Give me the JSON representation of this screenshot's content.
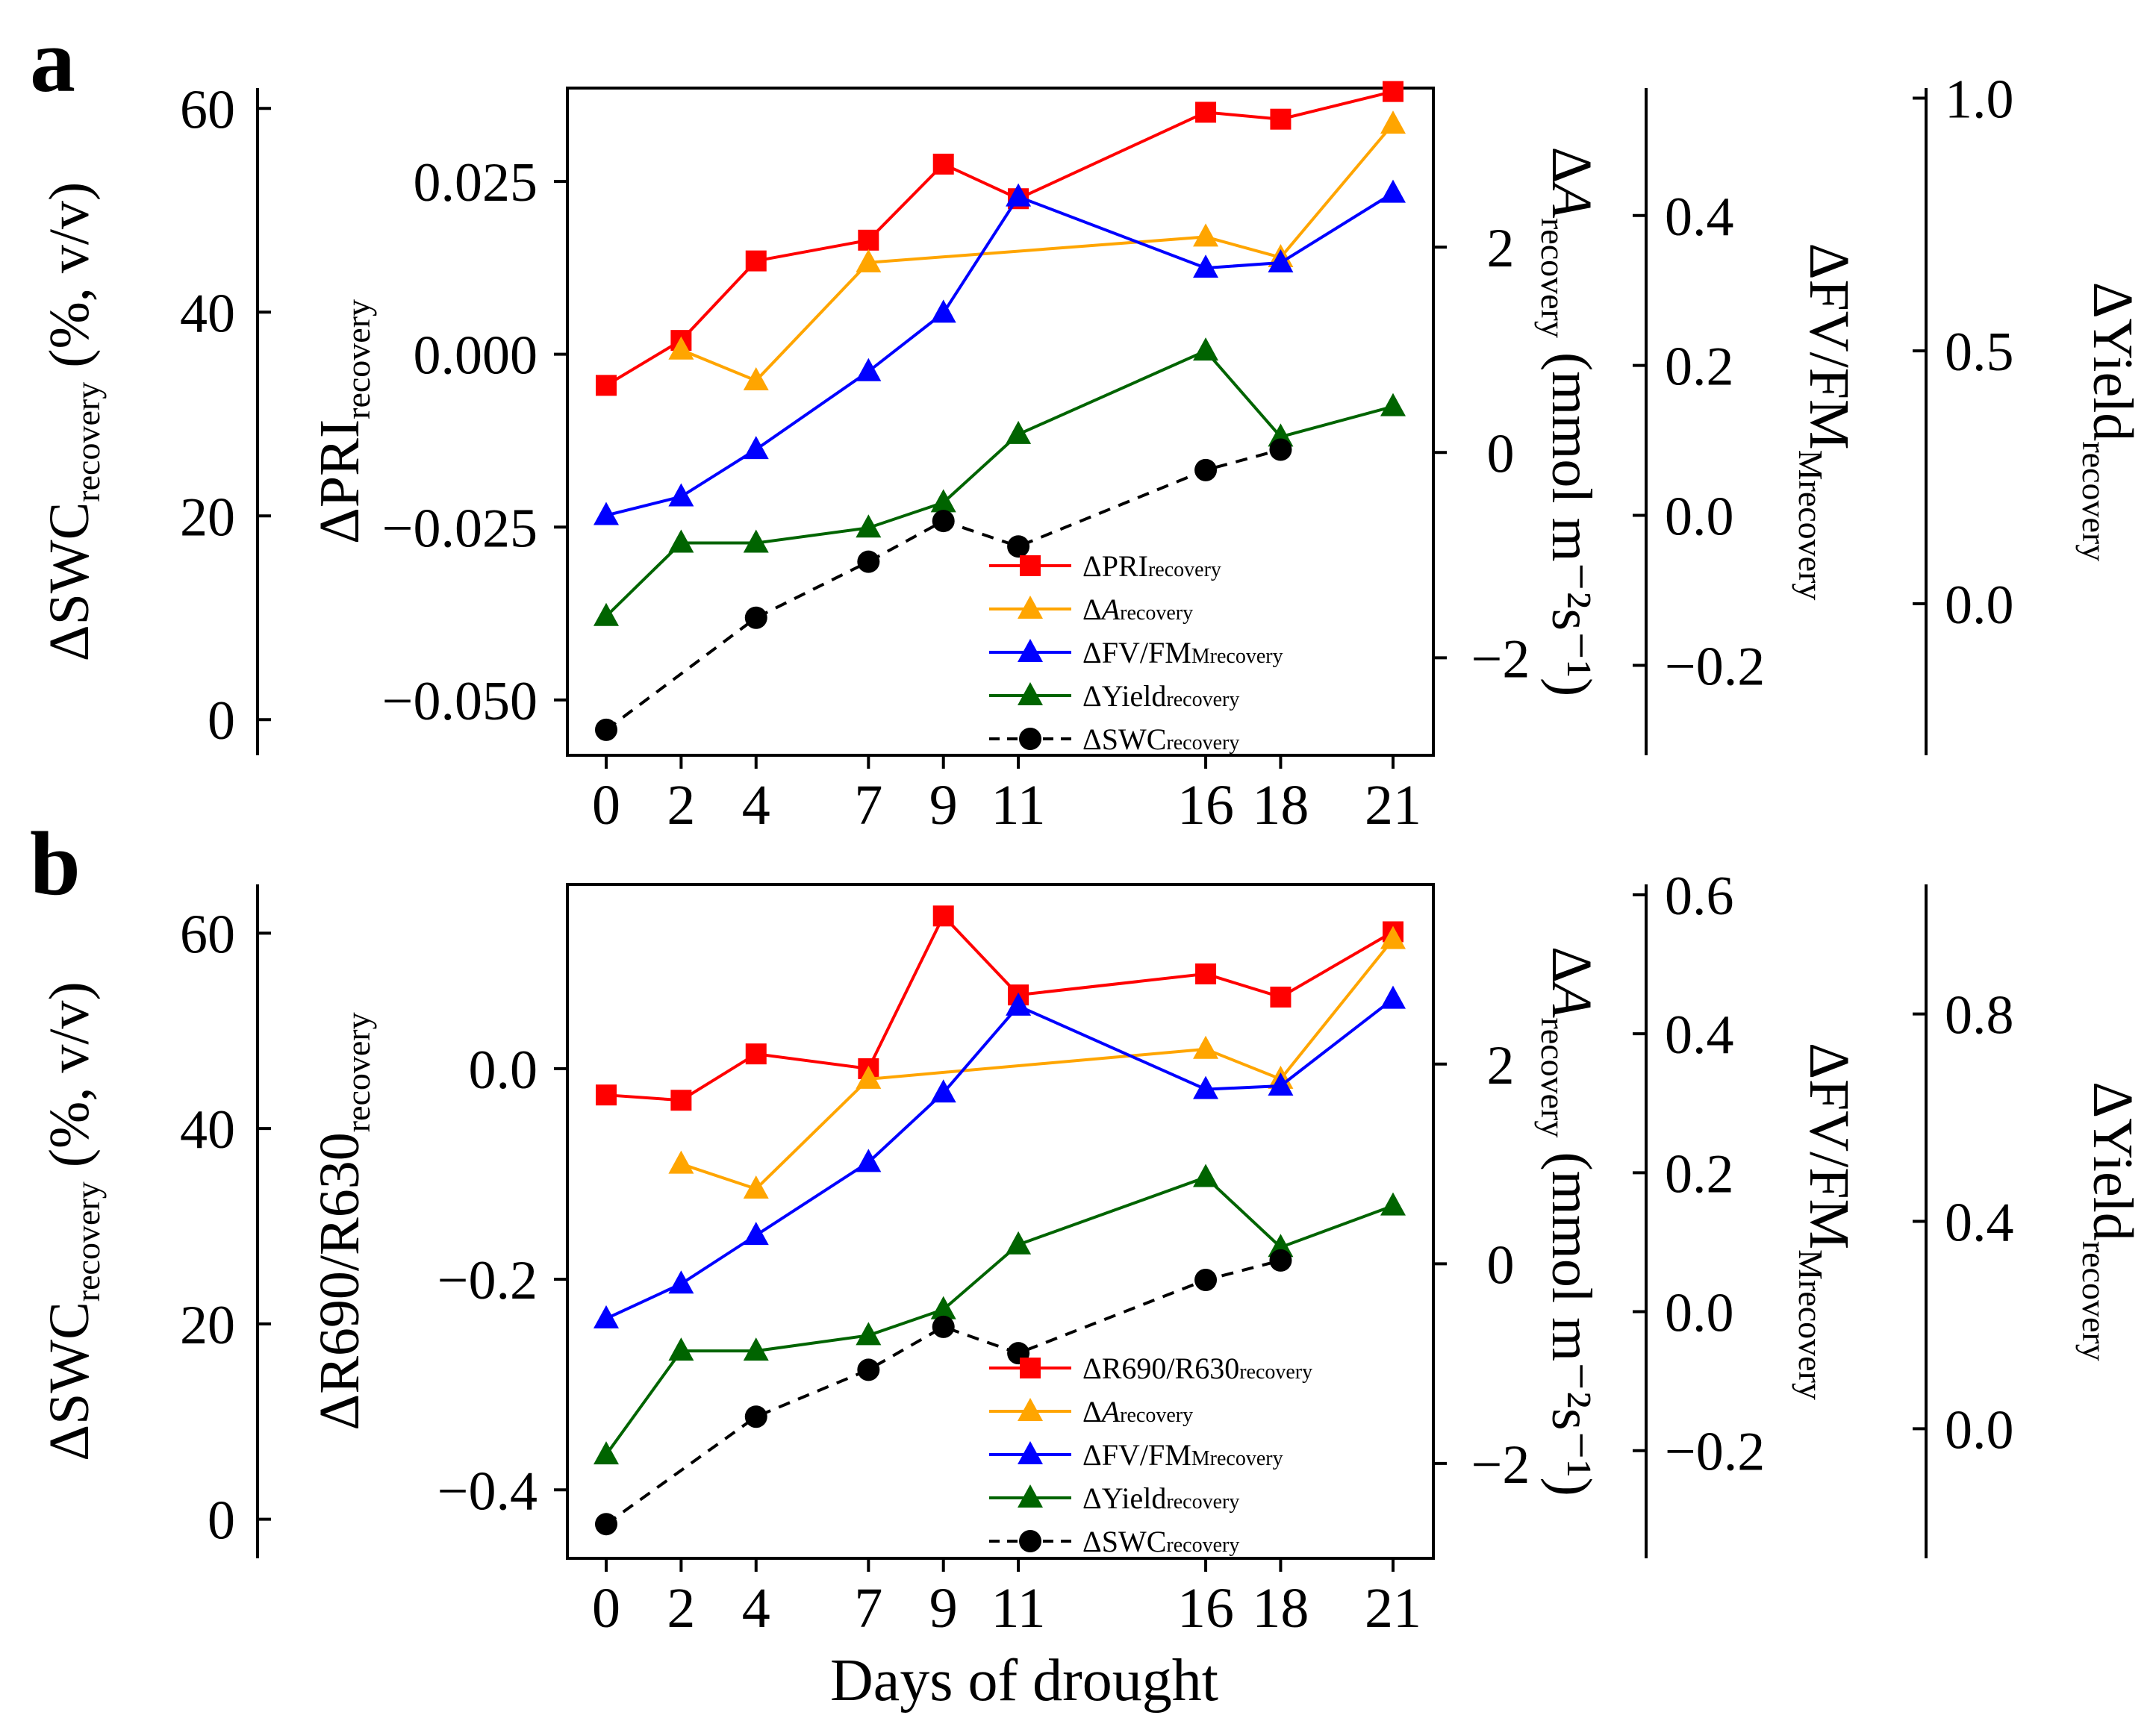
{
  "figure": {
    "x_axis_label": "Days of drought"
  },
  "colors": {
    "pri": "#ff0000",
    "a": "#ffa500",
    "fvfm": "#0000ff",
    "yield": "#006400",
    "swc": "#000000"
  },
  "chart_data": [
    {
      "panel": "a",
      "type": "line",
      "x": [
        0,
        2,
        4,
        7,
        9,
        11,
        16,
        18,
        21
      ],
      "xticks": [
        "0",
        "2",
        "4",
        "7",
        "9",
        "11",
        "16",
        "18",
        "21"
      ],
      "xlabel": "Days of drought",
      "axes": {
        "main": {
          "label": "ΔPRI",
          "sub": "recovery",
          "ylim": [
            -0.058,
            0.0385
          ],
          "ticks": [
            -0.05,
            -0.025,
            0,
            0.025
          ],
          "tick_labels": [
            "−0.050",
            "−0.025",
            "0.000",
            "0.025"
          ]
        },
        "a": {
          "label": "ΔA",
          "label_italic": true,
          "sub": "recovery",
          "unit": " (mmol m⁻²s⁻¹)",
          "ylim": [
            -2.95,
            3.55
          ],
          "ticks": [
            -2,
            0,
            2
          ],
          "tick_labels": [
            "−2",
            "0",
            "2"
          ]
        },
        "swc": {
          "label": "ΔSWC",
          "sub": "recovery",
          "unit": " (%, v/v)",
          "ylim": [
            -3.5,
            62
          ],
          "ticks": [
            0,
            20,
            40,
            60
          ],
          "tick_labels": [
            "0",
            "20",
            "40",
            "60"
          ]
        },
        "fvfm": {
          "label": "ΔFV/FM",
          "sub": "Mrecovery",
          "ylim": [
            -0.32,
            0.57
          ],
          "ticks": [
            -0.2,
            0,
            0.2,
            0.4
          ],
          "tick_labels": [
            "−0.2",
            "0.0",
            "0.2",
            "0.4"
          ]
        },
        "yield": {
          "label": "ΔYield",
          "sub": "recovery",
          "ylim": [
            -0.3,
            1.02
          ],
          "ticks": [
            0,
            0.5,
            1.0
          ],
          "tick_labels": [
            "0.0",
            "0.5",
            "1.0"
          ]
        }
      },
      "series": [
        {
          "name": "ΔPRI",
          "sub": "recovery",
          "axis": "main",
          "marker": "square",
          "color": "#ff0000",
          "values": [
            -0.0045,
            0.002,
            0.0135,
            0.0165,
            0.0275,
            0.0225,
            0.035,
            0.034,
            0.038
          ]
        },
        {
          "name": "ΔA",
          "sub": "recovery",
          "axis": "a",
          "marker": "triangle",
          "color": "#ffa500",
          "values": [
            null,
            1.0,
            0.7,
            1.85,
            null,
            null,
            2.1,
            1.9,
            3.2
          ]
        },
        {
          "name": "ΔFV/FM",
          "sub": "Mrecovery",
          "axis": "fvfm",
          "marker": "triangle",
          "color": "#0000ff",
          "values": [
            0.0,
            0.025,
            0.088,
            0.192,
            0.27,
            0.425,
            0.33,
            0.337,
            0.43
          ]
        },
        {
          "name": "ΔYield",
          "sub": "recovery",
          "axis": "yield",
          "marker": "triangle",
          "color": "#006400",
          "values": [
            -0.025,
            0.12,
            0.12,
            0.15,
            0.2,
            0.335,
            0.5,
            0.33,
            0.39
          ]
        },
        {
          "name": "ΔSWC",
          "sub": "recovery",
          "axis": "swc",
          "marker": "circle",
          "dashed": true,
          "color": "#000000",
          "values": [
            -1,
            null,
            10,
            15.5,
            19.5,
            17,
            24.5,
            26.5,
            null
          ]
        }
      ]
    },
    {
      "panel": "b",
      "type": "line",
      "x": [
        0,
        2,
        4,
        7,
        9,
        11,
        16,
        18,
        21
      ],
      "xticks": [
        "0",
        "2",
        "4",
        "7",
        "9",
        "11",
        "16",
        "18",
        "21"
      ],
      "xlabel": "Days of drought",
      "axes": {
        "main": {
          "label": "ΔR690/R630",
          "sub": "recovery",
          "ylim": [
            -0.465,
            0.175
          ],
          "ticks": [
            -0.4,
            -0.2,
            0
          ],
          "tick_labels": [
            "−0.4",
            "−0.2",
            "0.0"
          ]
        },
        "a": {
          "label": "ΔA",
          "label_italic": true,
          "sub": "recovery",
          "unit": " (mmol m⁻²s⁻¹)",
          "ylim": [
            -2.95,
            3.8
          ],
          "ticks": [
            -2,
            0,
            2
          ],
          "tick_labels": [
            "−2",
            "0",
            "2"
          ]
        },
        "swc": {
          "label": "ΔSWC",
          "sub": "recovery",
          "unit": " (%, v/v)",
          "ylim": [
            -4,
            65
          ],
          "ticks": [
            0,
            20,
            40,
            60
          ],
          "tick_labels": [
            "0",
            "20",
            "40",
            "60"
          ]
        },
        "fvfm": {
          "label": "ΔFV/FM",
          "sub": "Mrecovery",
          "ylim": [
            -0.355,
            0.615
          ],
          "ticks": [
            -0.2,
            0,
            0.2,
            0.4,
            0.6
          ],
          "tick_labels": [
            "−0.2",
            "0.0",
            "0.2",
            "0.4",
            "0.6"
          ]
        },
        "yield": {
          "label": "ΔYield",
          "sub": "recovery",
          "ylim": [
            -0.25,
            1.05
          ],
          "ticks": [
            0,
            0.4,
            0.8
          ],
          "tick_labels": [
            "0.0",
            "0.4",
            "0.8"
          ]
        }
      },
      "series": [
        {
          "name": "ΔR690/R630",
          "sub": "recovery",
          "axis": "main",
          "marker": "square",
          "color": "#ff0000",
          "values": [
            -0.025,
            -0.03,
            0.014,
            0.0,
            0.145,
            0.07,
            0.09,
            0.068,
            0.13
          ]
        },
        {
          "name": "ΔA",
          "sub": "recovery",
          "axis": "a",
          "marker": "triangle",
          "color": "#ffa500",
          "values": [
            null,
            1.0,
            0.75,
            1.85,
            null,
            null,
            2.15,
            1.85,
            3.25
          ]
        },
        {
          "name": "ΔFV/FM",
          "sub": "Mrecovery",
          "axis": "fvfm",
          "marker": "triangle",
          "color": "#0000ff",
          "values": [
            -0.01,
            0.04,
            0.11,
            0.215,
            0.315,
            0.44,
            0.32,
            0.325,
            0.45
          ]
        },
        {
          "name": "ΔYield",
          "sub": "recovery",
          "axis": "yield",
          "marker": "triangle",
          "color": "#006400",
          "values": [
            -0.05,
            0.15,
            0.15,
            0.18,
            0.23,
            0.355,
            0.485,
            0.35,
            0.43
          ]
        },
        {
          "name": "ΔSWC",
          "sub": "recovery",
          "axis": "swc",
          "marker": "circle",
          "dashed": true,
          "color": "#000000",
          "values": [
            -0.5,
            null,
            10.5,
            15.3,
            19.7,
            17,
            24.5,
            26.5,
            null
          ]
        }
      ]
    }
  ]
}
